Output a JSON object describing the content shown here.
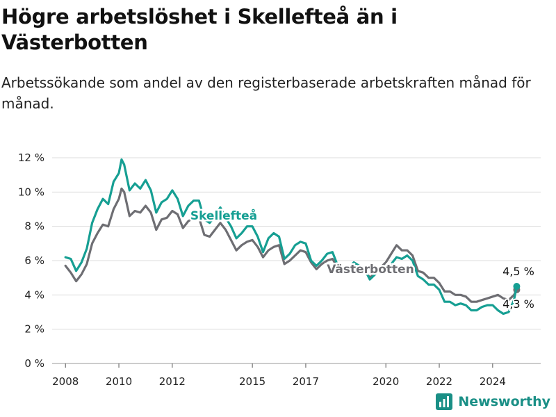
{
  "title": "Högre arbetslöshet i Skellefteå än i Västerbotten",
  "subtitle": "Arbetssökande som andel av den registerbaserade arbetskraften månad för månad.",
  "brand": "Newsworthy",
  "colors": {
    "skelleftea": "#169f93",
    "vasterbotten": "#6e6e73",
    "grid": "#dcdcdc",
    "brand": "#1a8f86"
  },
  "chart_data": {
    "type": "line",
    "ylim": [
      0,
      12
    ],
    "xlim": [
      2007.5,
      2025.8
    ],
    "yticks": [
      0,
      2,
      4,
      6,
      8,
      10,
      12
    ],
    "ytick_labels": [
      "0 %",
      "2 %",
      "4 %",
      "6 %",
      "8 %",
      "10 %",
      "12 %"
    ],
    "xticks": [
      2008,
      2010,
      2012,
      2015,
      2017,
      2020,
      2022,
      2024
    ],
    "xtick_labels": [
      "2008",
      "2010",
      "2012",
      "2015",
      "2017",
      "2020",
      "2022",
      "2024"
    ],
    "grid": true,
    "series": [
      {
        "name": "Skellefteå",
        "color": "#169f93",
        "label_value": "4,5 %",
        "points": [
          [
            2008.0,
            6.2
          ],
          [
            2008.2,
            6.1
          ],
          [
            2008.4,
            5.4
          ],
          [
            2008.6,
            5.9
          ],
          [
            2008.8,
            6.7
          ],
          [
            2009.0,
            8.2
          ],
          [
            2009.2,
            9.0
          ],
          [
            2009.4,
            9.6
          ],
          [
            2009.6,
            9.3
          ],
          [
            2009.8,
            10.6
          ],
          [
            2010.0,
            11.1
          ],
          [
            2010.1,
            11.9
          ],
          [
            2010.2,
            11.6
          ],
          [
            2010.4,
            10.1
          ],
          [
            2010.6,
            10.5
          ],
          [
            2010.8,
            10.2
          ],
          [
            2011.0,
            10.7
          ],
          [
            2011.2,
            10.1
          ],
          [
            2011.4,
            8.8
          ],
          [
            2011.6,
            9.4
          ],
          [
            2011.8,
            9.6
          ],
          [
            2012.0,
            10.1
          ],
          [
            2012.2,
            9.6
          ],
          [
            2012.4,
            8.6
          ],
          [
            2012.6,
            9.2
          ],
          [
            2012.8,
            9.5
          ],
          [
            2013.0,
            9.5
          ],
          [
            2013.2,
            8.4
          ],
          [
            2013.4,
            8.2
          ],
          [
            2013.6,
            8.6
          ],
          [
            2013.8,
            9.1
          ],
          [
            2014.0,
            8.5
          ],
          [
            2014.2,
            8.0
          ],
          [
            2014.4,
            7.3
          ],
          [
            2014.6,
            7.6
          ],
          [
            2014.8,
            8.0
          ],
          [
            2015.0,
            8.0
          ],
          [
            2015.2,
            7.4
          ],
          [
            2015.4,
            6.5
          ],
          [
            2015.6,
            7.3
          ],
          [
            2015.8,
            7.6
          ],
          [
            2016.0,
            7.4
          ],
          [
            2016.2,
            6.1
          ],
          [
            2016.4,
            6.4
          ],
          [
            2016.6,
            6.9
          ],
          [
            2016.8,
            7.1
          ],
          [
            2017.0,
            7.0
          ],
          [
            2017.2,
            6.0
          ],
          [
            2017.4,
            5.7
          ],
          [
            2017.6,
            6.0
          ],
          [
            2017.8,
            6.4
          ],
          [
            2018.0,
            6.5
          ],
          [
            2018.2,
            5.7
          ],
          [
            2018.4,
            5.4
          ],
          [
            2018.6,
            5.6
          ],
          [
            2018.8,
            5.9
          ],
          [
            2019.0,
            5.7
          ],
          [
            2019.2,
            5.5
          ],
          [
            2019.4,
            4.9
          ],
          [
            2019.6,
            5.2
          ],
          [
            2019.8,
            5.6
          ],
          [
            2020.0,
            5.7
          ],
          [
            2020.2,
            5.8
          ],
          [
            2020.4,
            6.2
          ],
          [
            2020.6,
            6.1
          ],
          [
            2020.8,
            6.3
          ],
          [
            2021.0,
            6.0
          ],
          [
            2021.2,
            5.1
          ],
          [
            2021.4,
            4.9
          ],
          [
            2021.6,
            4.6
          ],
          [
            2021.8,
            4.6
          ],
          [
            2022.0,
            4.3
          ],
          [
            2022.2,
            3.6
          ],
          [
            2022.4,
            3.6
          ],
          [
            2022.6,
            3.4
          ],
          [
            2022.8,
            3.5
          ],
          [
            2023.0,
            3.4
          ],
          [
            2023.2,
            3.1
          ],
          [
            2023.4,
            3.1
          ],
          [
            2023.6,
            3.3
          ],
          [
            2023.8,
            3.4
          ],
          [
            2024.0,
            3.4
          ],
          [
            2024.2,
            3.1
          ],
          [
            2024.4,
            2.9
          ],
          [
            2024.6,
            3.0
          ],
          [
            2024.8,
            3.7
          ],
          [
            2024.9,
            4.5
          ]
        ]
      },
      {
        "name": "Västerbotten",
        "color": "#6e6e73",
        "label_value": "4,3 %",
        "points": [
          [
            2008.0,
            5.7
          ],
          [
            2008.2,
            5.3
          ],
          [
            2008.4,
            4.8
          ],
          [
            2008.6,
            5.2
          ],
          [
            2008.8,
            5.8
          ],
          [
            2009.0,
            7.0
          ],
          [
            2009.2,
            7.6
          ],
          [
            2009.4,
            8.1
          ],
          [
            2009.6,
            8.0
          ],
          [
            2009.8,
            9.0
          ],
          [
            2010.0,
            9.6
          ],
          [
            2010.1,
            10.2
          ],
          [
            2010.2,
            10.0
          ],
          [
            2010.4,
            8.6
          ],
          [
            2010.6,
            8.9
          ],
          [
            2010.8,
            8.8
          ],
          [
            2011.0,
            9.2
          ],
          [
            2011.2,
            8.8
          ],
          [
            2011.4,
            7.8
          ],
          [
            2011.6,
            8.4
          ],
          [
            2011.8,
            8.5
          ],
          [
            2012.0,
            8.9
          ],
          [
            2012.2,
            8.7
          ],
          [
            2012.4,
            7.9
          ],
          [
            2012.6,
            8.3
          ],
          [
            2012.8,
            8.5
          ],
          [
            2013.0,
            8.5
          ],
          [
            2013.2,
            7.5
          ],
          [
            2013.4,
            7.4
          ],
          [
            2013.6,
            7.8
          ],
          [
            2013.8,
            8.2
          ],
          [
            2014.0,
            7.8
          ],
          [
            2014.2,
            7.2
          ],
          [
            2014.4,
            6.6
          ],
          [
            2014.6,
            6.9
          ],
          [
            2014.8,
            7.1
          ],
          [
            2015.0,
            7.2
          ],
          [
            2015.2,
            6.8
          ],
          [
            2015.4,
            6.2
          ],
          [
            2015.6,
            6.6
          ],
          [
            2015.8,
            6.8
          ],
          [
            2016.0,
            6.9
          ],
          [
            2016.2,
            5.8
          ],
          [
            2016.4,
            6.0
          ],
          [
            2016.6,
            6.3
          ],
          [
            2016.8,
            6.6
          ],
          [
            2017.0,
            6.5
          ],
          [
            2017.2,
            5.9
          ],
          [
            2017.4,
            5.5
          ],
          [
            2017.6,
            5.8
          ],
          [
            2017.8,
            6.0
          ],
          [
            2018.0,
            6.1
          ],
          [
            2018.2,
            5.6
          ],
          [
            2018.4,
            5.3
          ],
          [
            2018.6,
            5.5
          ],
          [
            2018.8,
            5.7
          ],
          [
            2019.0,
            5.7
          ],
          [
            2019.2,
            5.5
          ],
          [
            2019.4,
            5.0
          ],
          [
            2019.6,
            5.3
          ],
          [
            2019.8,
            5.6
          ],
          [
            2020.0,
            5.9
          ],
          [
            2020.2,
            6.4
          ],
          [
            2020.4,
            6.9
          ],
          [
            2020.6,
            6.6
          ],
          [
            2020.8,
            6.6
          ],
          [
            2021.0,
            6.3
          ],
          [
            2021.2,
            5.4
          ],
          [
            2021.4,
            5.3
          ],
          [
            2021.6,
            5.0
          ],
          [
            2021.8,
            5.0
          ],
          [
            2022.0,
            4.7
          ],
          [
            2022.2,
            4.2
          ],
          [
            2022.4,
            4.2
          ],
          [
            2022.6,
            4.0
          ],
          [
            2022.8,
            4.0
          ],
          [
            2023.0,
            3.9
          ],
          [
            2023.2,
            3.6
          ],
          [
            2023.4,
            3.6
          ],
          [
            2023.6,
            3.7
          ],
          [
            2023.8,
            3.8
          ],
          [
            2024.0,
            3.9
          ],
          [
            2024.2,
            4.0
          ],
          [
            2024.4,
            3.8
          ],
          [
            2024.6,
            3.7
          ],
          [
            2024.8,
            4.0
          ],
          [
            2024.9,
            4.3
          ]
        ]
      }
    ]
  }
}
